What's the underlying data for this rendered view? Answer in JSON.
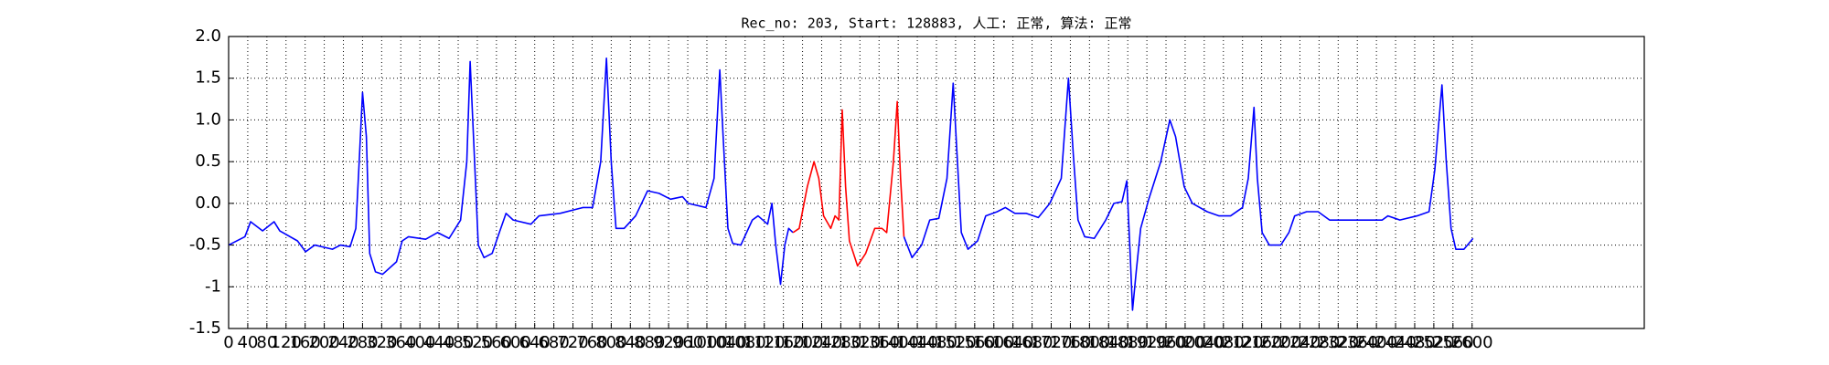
{
  "chart_data": {
    "type": "line",
    "title": "Rec_no: 203, Start: 128883, 人工: 正常, 算法: 正常",
    "xlim": [
      0,
      2960
    ],
    "xticks": [
      0,
      40,
      80,
      120,
      160,
      200,
      240,
      280,
      320,
      360,
      400,
      440,
      480,
      520,
      560,
      600,
      640,
      680,
      720,
      760,
      800,
      840,
      880,
      920,
      960,
      1000,
      1040,
      1080,
      1120,
      1160,
      1200,
      1240,
      1280,
      1320,
      1360,
      1400,
      1440,
      1480,
      1520,
      1560,
      1600,
      1640,
      1680,
      1720,
      1760,
      1800,
      1840,
      1880,
      1920,
      1960,
      2000,
      2040,
      2080,
      2120,
      2160,
      2200,
      2240,
      2280,
      2320,
      2360,
      2400,
      2440,
      2480,
      2520,
      2560,
      2600
    ],
    "ylim": [
      -1.5,
      2.0
    ],
    "yticks": [
      -1.5,
      -1,
      -0.5,
      {
        "value": 0,
        "label": "0.0"
      },
      0.5,
      {
        "value": 1,
        "label": "1.0"
      },
      1.5,
      {
        "value": 2,
        "label": "2.0"
      }
    ],
    "grid": true,
    "series": [
      {
        "color": "#0000ff",
        "x": [
          0,
          34,
          46,
          71,
          95,
          107,
          144,
          161,
          180,
          217,
          234,
          254,
          266,
          273,
          280,
          288,
          295,
          307,
          322,
          351,
          363,
          376,
          412,
          437,
          461,
          485,
          498,
          505,
          512,
          522,
          534,
          551,
          566,
          580,
          595,
          632,
          649,
          693,
          741,
          761,
          778,
          790,
          800,
          810,
          827,
          851,
          876,
          900,
          924,
          949,
          961,
          998,
          1015,
          1027,
          1034,
          1044,
          1054,
          1071,
          1095,
          1107,
          1127,
          1136,
          1144,
          1154,
          1163,
          1171,
          1180
        ],
        "values": [
          -0.5,
          -0.4,
          -0.22,
          -0.33,
          -0.22,
          -0.33,
          -0.45,
          -0.58,
          -0.5,
          -0.55,
          -0.5,
          -0.52,
          -0.3,
          0.5,
          1.33,
          0.8,
          -0.6,
          -0.82,
          -0.85,
          -0.7,
          -0.45,
          -0.4,
          -0.43,
          -0.35,
          -0.42,
          -0.2,
          0.5,
          1.7,
          0.8,
          -0.5,
          -0.65,
          -0.6,
          -0.35,
          -0.12,
          -0.2,
          -0.25,
          -0.15,
          -0.12,
          -0.05,
          -0.05,
          0.5,
          1.74,
          0.5,
          -0.3,
          -0.3,
          -0.15,
          0.15,
          0.12,
          0.05,
          0.08,
          0,
          -0.05,
          0.3,
          1.6,
          0.8,
          -0.3,
          -0.48,
          -0.5,
          -0.2,
          -0.15,
          -0.25,
          0,
          -0.5,
          -0.97,
          -0.5,
          -0.3,
          -0.35
        ]
      },
      {
        "color": "#ff0000",
        "x": [
          1180,
          1193,
          1210,
          1224,
          1234,
          1244,
          1259,
          1268,
          1276,
          1283,
          1290,
          1298,
          1315,
          1332,
          1351,
          1366,
          1376,
          1390,
          1398,
          1405,
          1412
        ],
        "values": [
          -0.35,
          -0.3,
          0.2,
          0.5,
          0.3,
          -0.15,
          -0.3,
          -0.15,
          -0.2,
          1.12,
          0.2,
          -0.45,
          -0.75,
          -0.6,
          -0.3,
          -0.3,
          -0.35,
          0.5,
          1.22,
          0.3,
          -0.4
        ]
      },
      {
        "color": "#0000ff",
        "x": [
          1412,
          1429,
          1449,
          1466,
          1485,
          1502,
          1515,
          1522,
          1532,
          1546,
          1566,
          1583,
          1607,
          1624,
          1644,
          1668,
          1693,
          1717,
          1741,
          1756,
          1766,
          1776,
          1790,
          1810,
          1834,
          1851,
          1868,
          1878,
          1885,
          1890,
          1898,
          1907,
          1924,
          1949,
          1968,
          1980,
          1998,
          2015,
          2046,
          2071,
          2095,
          2120,
          2132,
          2144,
          2151,
          2161,
          2176,
          2200,
          2217,
          2229,
          2254,
          2278,
          2302,
          2376,
          2412,
          2424,
          2449,
          2485,
          2510,
          2522,
          2537,
          2546,
          2556,
          2566,
          2583,
          2602
        ],
        "values": [
          -0.4,
          -0.65,
          -0.5,
          -0.2,
          -0.18,
          0.3,
          1.44,
          0.7,
          -0.35,
          -0.55,
          -0.45,
          -0.15,
          -0.1,
          -0.05,
          -0.12,
          -0.12,
          -0.17,
          0,
          0.3,
          1.5,
          0.6,
          -0.2,
          -0.4,
          -0.42,
          -0.2,
          0,
          0.02,
          0.27,
          -0.6,
          -1.28,
          -0.8,
          -0.3,
          0.05,
          0.5,
          1.0,
          0.8,
          0.2,
          0,
          -0.1,
          -0.15,
          -0.15,
          -0.05,
          0.3,
          1.15,
          0.3,
          -0.35,
          -0.5,
          -0.5,
          -0.35,
          -0.15,
          -0.1,
          -0.1,
          -0.2,
          -0.2,
          -0.2,
          -0.15,
          -0.2,
          -0.15,
          -0.1,
          0.4,
          1.42,
          0.5,
          -0.3,
          -0.55,
          -0.55,
          -0.42
        ]
      }
    ]
  }
}
